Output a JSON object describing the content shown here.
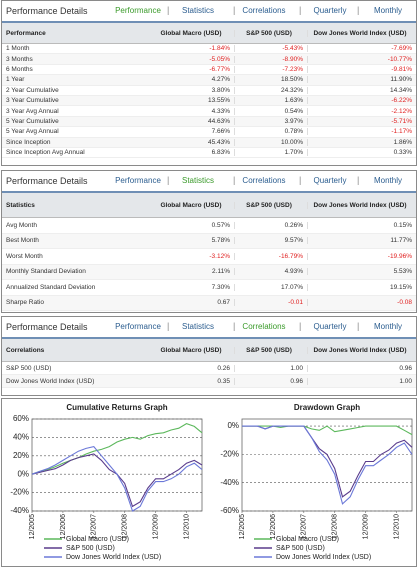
{
  "panels": [
    {
      "title": "Performance Details",
      "tabs": [
        "Performance",
        "Statistics",
        "Correlations",
        "Quarterly",
        "Monthly"
      ],
      "active": 0,
      "table": {
        "header": [
          "Performance",
          "Global Macro (USD)",
          "S&P 500 (USD)",
          "Dow Jones World Index (USD)"
        ],
        "rows": [
          [
            "1 Month",
            "-1.84%",
            "-5.43%",
            "-7.69%"
          ],
          [
            "3 Months",
            "-5.05%",
            "-8.90%",
            "-10.77%"
          ],
          [
            "6 Months",
            "-6.77%",
            "-7.23%",
            "-9.81%"
          ],
          [
            "1 Year",
            "4.27%",
            "18.50%",
            "11.90%"
          ],
          [
            "2 Year Cumulative",
            "3.80%",
            "24.32%",
            "14.34%"
          ],
          [
            "3 Year Cumulative",
            "13.55%",
            "1.63%",
            "-6.22%"
          ],
          [
            "3 Year Avg Annual",
            "4.33%",
            "0.54%",
            "-2.12%"
          ],
          [
            "5 Year Cumulative",
            "44.63%",
            "3.97%",
            "-5.71%"
          ],
          [
            "5 Year Avg Annual",
            "7.66%",
            "0.78%",
            "-1.17%"
          ],
          [
            "Since Inception",
            "45.43%",
            "10.00%",
            "1.86%"
          ],
          [
            "Since Inception Avg Annual",
            "6.83%",
            "1.70%",
            "0.33%"
          ]
        ]
      }
    },
    {
      "title": "Performance Details",
      "tabs": [
        "Performance",
        "Statistics",
        "Correlations",
        "Quarterly",
        "Monthly"
      ],
      "active": 1,
      "table": {
        "header": [
          "Statistics",
          "Global Macro (USD)",
          "S&P 500 (USD)",
          "Dow Jones World Index (USD)"
        ],
        "rows": [
          [
            "Avg Month",
            "0.57%",
            "0.26%",
            "0.15%"
          ],
          [
            "Best Month",
            "5.78%",
            "9.57%",
            "11.77%"
          ],
          [
            "Worst Month",
            "-3.12%",
            "-16.79%",
            "-19.96%"
          ],
          [
            "Monthly Standard Deviation",
            "2.11%",
            "4.93%",
            "5.53%"
          ],
          [
            "Annualized Standard Deviation",
            "7.30%",
            "17.07%",
            "19.15%"
          ],
          [
            "Sharpe Ratio",
            "0.67",
            "-0.01",
            "-0.08"
          ]
        ]
      }
    },
    {
      "title": "Performance Details",
      "tabs": [
        "Performance",
        "Statistics",
        "Correlations",
        "Quarterly",
        "Monthly"
      ],
      "active": 2,
      "table": {
        "header": [
          "Correlations",
          "Global Macro (USD)",
          "S&P 500 (USD)",
          "Dow Jones World Index (USD)"
        ],
        "rows": [
          [
            "S&P 500 (USD)",
            "0.26",
            "1.00",
            "0.96"
          ],
          [
            "Dow Jones World Index (USD)",
            "0.35",
            "0.96",
            "1.00"
          ]
        ]
      }
    }
  ],
  "chart_data": [
    {
      "type": "line",
      "title": "Cumulative Returns Graph",
      "categories": [
        "12/2005",
        null,
        null,
        null,
        "12/2006",
        null,
        null,
        null,
        "12/2007",
        null,
        null,
        null,
        "12/2008",
        null,
        null,
        null,
        "12/2009",
        null,
        null,
        null,
        "12/2010",
        null,
        null
      ],
      "ylim": [
        -40,
        60
      ],
      "yticks": [
        {
          "value": -40,
          "label": "-40%"
        },
        {
          "value": -20,
          "label": "-20%"
        },
        {
          "value": 0,
          "label": "0%"
        },
        {
          "value": 20,
          "label": "20%"
        },
        {
          "value": 40,
          "label": "40%"
        },
        {
          "value": 60,
          "label": "60%"
        }
      ],
      "grid": true,
      "series": [
        {
          "name": "Global Macro (USD)",
          "color": "#5cb85c",
          "values": [
            0,
            3,
            5,
            8,
            12,
            15,
            18,
            22,
            25,
            27,
            30,
            35,
            38,
            40,
            38,
            42,
            44,
            45,
            48,
            50,
            55,
            52,
            45
          ]
        },
        {
          "name": "S&P 500 (USD)",
          "color": "#5a3c8c",
          "values": [
            0,
            2,
            4,
            6,
            10,
            15,
            18,
            20,
            22,
            15,
            5,
            0,
            -10,
            -35,
            -30,
            -15,
            -5,
            -5,
            0,
            5,
            12,
            15,
            10
          ]
        },
        {
          "name": "Dow Jones World Index (USD)",
          "color": "#6b78d8",
          "values": [
            0,
            3,
            6,
            10,
            15,
            20,
            25,
            28,
            30,
            20,
            10,
            0,
            -15,
            -40,
            -35,
            -18,
            -8,
            -8,
            -5,
            0,
            8,
            12,
            5
          ]
        }
      ]
    },
    {
      "type": "line",
      "title": "Drawdown Graph",
      "categories": [
        "12/2005",
        null,
        null,
        null,
        "12/2006",
        null,
        null,
        null,
        "12/2007",
        null,
        null,
        null,
        "12/2008",
        null,
        null,
        null,
        "12/2009",
        null,
        null,
        null,
        "12/2010",
        null,
        null
      ],
      "ylim": [
        -60,
        5
      ],
      "yticks": [
        {
          "value": -60,
          "label": "-60%"
        },
        {
          "value": -40,
          "label": "-40%"
        },
        {
          "value": -20,
          "label": "-20%"
        },
        {
          "value": 0,
          "label": "0%"
        }
      ],
      "grid": true,
      "series": [
        {
          "name": "Global Macro (USD)",
          "color": "#5cb85c",
          "values": [
            0,
            0,
            0,
            0,
            0,
            -1,
            0,
            0,
            0,
            -2,
            -3,
            0,
            -4,
            -3,
            -2,
            -1,
            0,
            0,
            0,
            0,
            0,
            -3,
            -6
          ]
        },
        {
          "name": "S&P 500 (USD)",
          "color": "#5a3c8c",
          "values": [
            0,
            0,
            0,
            -2,
            0,
            0,
            0,
            0,
            0,
            -8,
            -16,
            -20,
            -30,
            -50,
            -46,
            -35,
            -25,
            -25,
            -20,
            -17,
            -12,
            -10,
            -15
          ]
        },
        {
          "name": "Dow Jones World Index (USD)",
          "color": "#6b78d8",
          "values": [
            0,
            0,
            0,
            -2,
            0,
            0,
            0,
            0,
            0,
            -8,
            -18,
            -24,
            -34,
            -55,
            -50,
            -38,
            -28,
            -28,
            -24,
            -20,
            -15,
            -12,
            -20
          ]
        }
      ]
    }
  ]
}
